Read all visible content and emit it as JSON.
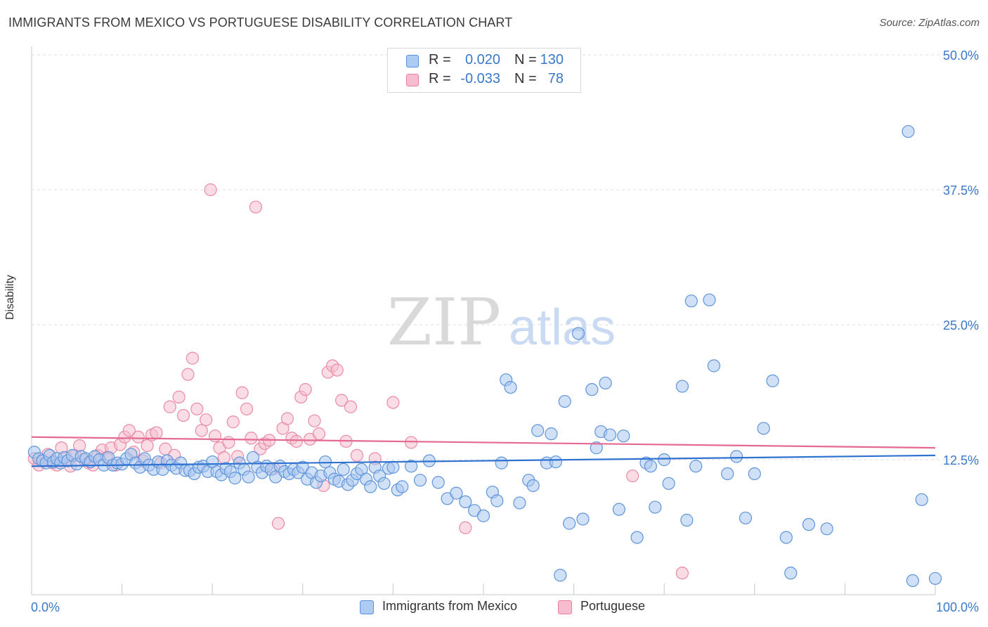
{
  "header": {
    "title": "IMMIGRANTS FROM MEXICO VS PORTUGUESE DISABILITY CORRELATION CHART",
    "source": "Source: ZipAtlas.com"
  },
  "watermark": {
    "zip": "ZIP",
    "atlas": "atlas"
  },
  "legend": {
    "r_label": "R =",
    "n_label": "N =",
    "rows": [
      {
        "series": "Immigrants from Mexico",
        "r": "0.020",
        "n": "130",
        "fill": "#aecbf2",
        "stroke": "#5b8fd9"
      },
      {
        "series": "Portuguese",
        "r": "-0.033",
        "n": "78",
        "fill": "#f7bccd",
        "stroke": "#e77fa0"
      }
    ]
  },
  "colors": {
    "blue_fill": "#a9c7ef",
    "blue_stroke": "#5f95db",
    "blue_line": "#2f72d0",
    "pink_fill": "#f6bfd0",
    "pink_stroke": "#ea8aa9",
    "pink_line": "#e46a93",
    "axis_text": "#3a78c9",
    "grid": "#dcdcdc"
  },
  "chart_data": {
    "type": "scatter",
    "title": "IMMIGRANTS FROM MEXICO VS PORTUGUESE DISABILITY CORRELATION CHART",
    "xlabel": "",
    "ylabel": "Disability",
    "xlim": [
      0,
      100
    ],
    "ylim": [
      0,
      50
    ],
    "x_tick_labels": [
      "0.0%",
      "100.0%"
    ],
    "y_ticks": [
      12.5,
      25.0,
      37.5,
      50.0
    ],
    "y_tick_labels": [
      "12.5%",
      "25.0%",
      "37.5%",
      "50.0%"
    ],
    "grid": "horizontal dashed",
    "legend_position": "top-center",
    "series": [
      {
        "name": "Immigrants from Mexico",
        "r": 0.02,
        "n": 130,
        "trend": {
          "x": [
            0,
            100
          ],
          "y": [
            11.9,
            12.9
          ]
        },
        "points": [
          [
            0.3,
            13.2
          ],
          [
            0.8,
            12.6
          ],
          [
            1.2,
            12.4
          ],
          [
            1.6,
            12.2
          ],
          [
            2.0,
            12.9
          ],
          [
            2.4,
            12.3
          ],
          [
            2.8,
            12.6
          ],
          [
            3.2,
            12.2
          ],
          [
            3.6,
            12.7
          ],
          [
            4.0,
            12.4
          ],
          [
            4.5,
            12.9
          ],
          [
            5.0,
            12.1
          ],
          [
            5.5,
            12.8
          ],
          [
            6.0,
            12.6
          ],
          [
            6.5,
            12.3
          ],
          [
            7.0,
            12.8
          ],
          [
            7.5,
            12.5
          ],
          [
            8.0,
            12.0
          ],
          [
            8.5,
            12.7
          ],
          [
            9.0,
            12.0
          ],
          [
            9.5,
            12.2
          ],
          [
            10.0,
            12.1
          ],
          [
            10.5,
            12.6
          ],
          [
            11.0,
            13.0
          ],
          [
            11.5,
            12.2
          ],
          [
            12.0,
            11.8
          ],
          [
            12.5,
            12.6
          ],
          [
            13.0,
            12.0
          ],
          [
            13.5,
            11.6
          ],
          [
            14.0,
            12.3
          ],
          [
            14.5,
            11.6
          ],
          [
            15.0,
            12.4
          ],
          [
            15.5,
            12.0
          ],
          [
            16.0,
            11.7
          ],
          [
            16.5,
            12.2
          ],
          [
            17.0,
            11.5
          ],
          [
            17.5,
            11.5
          ],
          [
            18.0,
            11.2
          ],
          [
            18.5,
            11.8
          ],
          [
            19.0,
            11.9
          ],
          [
            19.5,
            11.4
          ],
          [
            20.0,
            12.3
          ],
          [
            20.5,
            11.4
          ],
          [
            21.0,
            11.1
          ],
          [
            21.5,
            11.7
          ],
          [
            22.0,
            11.4
          ],
          [
            22.5,
            10.8
          ],
          [
            23.0,
            12.2
          ],
          [
            23.5,
            11.6
          ],
          [
            24.0,
            10.9
          ],
          [
            24.5,
            12.7
          ],
          [
            25.0,
            11.8
          ],
          [
            25.5,
            11.3
          ],
          [
            26.0,
            11.9
          ],
          [
            26.5,
            11.6
          ],
          [
            27.0,
            10.9
          ],
          [
            27.5,
            11.9
          ],
          [
            28.0,
            11.4
          ],
          [
            28.5,
            11.2
          ],
          [
            29.0,
            11.6
          ],
          [
            29.5,
            11.3
          ],
          [
            30.0,
            11.8
          ],
          [
            30.5,
            10.7
          ],
          [
            31.0,
            11.3
          ],
          [
            31.5,
            10.4
          ],
          [
            32.0,
            11.0
          ],
          [
            32.5,
            12.3
          ],
          [
            33.0,
            11.3
          ],
          [
            33.5,
            10.7
          ],
          [
            34.0,
            10.5
          ],
          [
            34.5,
            11.6
          ],
          [
            35.0,
            10.2
          ],
          [
            35.5,
            10.6
          ],
          [
            36.0,
            11.2
          ],
          [
            36.5,
            11.6
          ],
          [
            37.0,
            10.7
          ],
          [
            37.5,
            10.0
          ],
          [
            38.0,
            11.8
          ],
          [
            38.5,
            11.0
          ],
          [
            39.0,
            10.3
          ],
          [
            39.5,
            11.7
          ],
          [
            40.0,
            11.8
          ],
          [
            40.5,
            9.7
          ],
          [
            41.0,
            10.0
          ],
          [
            42.0,
            11.9
          ],
          [
            43.0,
            10.6
          ],
          [
            44.0,
            12.4
          ],
          [
            45.0,
            10.4
          ],
          [
            46.0,
            8.9
          ],
          [
            47.0,
            9.4
          ],
          [
            48.0,
            8.6
          ],
          [
            49.0,
            7.8
          ],
          [
            50.0,
            7.3
          ],
          [
            51.0,
            9.5
          ],
          [
            51.5,
            8.7
          ],
          [
            52.0,
            12.2
          ],
          [
            52.5,
            19.9
          ],
          [
            53.0,
            19.2
          ],
          [
            54.0,
            8.5
          ],
          [
            55.0,
            10.6
          ],
          [
            55.5,
            10.1
          ],
          [
            56.0,
            15.2
          ],
          [
            57.0,
            12.2
          ],
          [
            57.5,
            14.9
          ],
          [
            58.0,
            12.3
          ],
          [
            59.0,
            17.9
          ],
          [
            59.5,
            6.6
          ],
          [
            60.5,
            24.2
          ],
          [
            61.0,
            7.0
          ],
          [
            62.0,
            19.0
          ],
          [
            62.5,
            13.6
          ],
          [
            63.0,
            15.1
          ],
          [
            63.5,
            19.6
          ],
          [
            64.0,
            14.8
          ],
          [
            65.0,
            7.9
          ],
          [
            65.5,
            14.7
          ],
          [
            67.0,
            5.3
          ],
          [
            68.0,
            12.2
          ],
          [
            68.5,
            11.9
          ],
          [
            69.0,
            8.1
          ],
          [
            70.0,
            12.5
          ],
          [
            70.5,
            10.3
          ],
          [
            72.0,
            19.3
          ],
          [
            72.5,
            6.9
          ],
          [
            73.0,
            27.2
          ],
          [
            73.5,
            11.9
          ],
          [
            75.0,
            27.3
          ],
          [
            75.5,
            21.2
          ],
          [
            77.0,
            11.2
          ],
          [
            78.0,
            12.8
          ],
          [
            79.0,
            7.1
          ],
          [
            80.0,
            11.2
          ],
          [
            81.0,
            15.4
          ],
          [
            82.0,
            19.8
          ],
          [
            83.5,
            5.3
          ],
          [
            84.0,
            2.0
          ],
          [
            86.0,
            6.5
          ],
          [
            88.0,
            6.1
          ],
          [
            97.0,
            42.9
          ],
          [
            97.5,
            1.3
          ],
          [
            98.5,
            8.8
          ],
          [
            100.0,
            1.5
          ],
          [
            58.5,
            1.8
          ]
        ]
      },
      {
        "name": "Portuguese",
        "r": -0.033,
        "n": 78,
        "trend": {
          "x": [
            0,
            100
          ],
          "y": [
            14.6,
            13.6
          ]
        },
        "points": [
          [
            0.3,
            12.6
          ],
          [
            0.8,
            12.0
          ],
          [
            1.3,
            12.4
          ],
          [
            1.8,
            13.0
          ],
          [
            2.3,
            12.2
          ],
          [
            2.8,
            12.0
          ],
          [
            3.3,
            13.6
          ],
          [
            3.8,
            12.7
          ],
          [
            4.3,
            11.9
          ],
          [
            4.8,
            12.9
          ],
          [
            5.3,
            13.8
          ],
          [
            5.8,
            12.5
          ],
          [
            6.3,
            12.2
          ],
          [
            6.8,
            12.0
          ],
          [
            7.3,
            12.9
          ],
          [
            7.8,
            13.4
          ],
          [
            8.3,
            12.7
          ],
          [
            8.8,
            13.6
          ],
          [
            9.3,
            12.0
          ],
          [
            9.8,
            13.9
          ],
          [
            10.3,
            14.6
          ],
          [
            10.8,
            15.2
          ],
          [
            11.3,
            13.2
          ],
          [
            11.8,
            14.6
          ],
          [
            12.3,
            12.4
          ],
          [
            12.8,
            13.8
          ],
          [
            13.3,
            14.8
          ],
          [
            13.8,
            15.0
          ],
          [
            14.3,
            12.2
          ],
          [
            14.8,
            13.5
          ],
          [
            15.3,
            17.4
          ],
          [
            15.8,
            12.9
          ],
          [
            16.3,
            18.3
          ],
          [
            16.8,
            16.6
          ],
          [
            17.3,
            20.4
          ],
          [
            17.8,
            21.9
          ],
          [
            18.3,
            17.2
          ],
          [
            18.8,
            15.2
          ],
          [
            19.3,
            16.2
          ],
          [
            19.8,
            37.5
          ],
          [
            20.3,
            14.7
          ],
          [
            20.8,
            13.6
          ],
          [
            21.3,
            12.7
          ],
          [
            21.8,
            14.1
          ],
          [
            22.3,
            16.0
          ],
          [
            22.8,
            12.8
          ],
          [
            23.3,
            18.7
          ],
          [
            23.8,
            17.2
          ],
          [
            24.3,
            14.5
          ],
          [
            24.8,
            35.9
          ],
          [
            25.3,
            13.5
          ],
          [
            25.8,
            14.0
          ],
          [
            26.3,
            14.3
          ],
          [
            26.8,
            11.7
          ],
          [
            27.3,
            6.6
          ],
          [
            27.8,
            15.4
          ],
          [
            28.3,
            16.3
          ],
          [
            28.8,
            14.5
          ],
          [
            29.3,
            14.2
          ],
          [
            29.8,
            18.3
          ],
          [
            30.3,
            19.0
          ],
          [
            30.8,
            14.4
          ],
          [
            31.3,
            16.1
          ],
          [
            31.8,
            14.9
          ],
          [
            32.3,
            10.1
          ],
          [
            32.8,
            20.6
          ],
          [
            33.3,
            21.2
          ],
          [
            33.8,
            20.8
          ],
          [
            34.3,
            18.0
          ],
          [
            34.8,
            14.2
          ],
          [
            35.3,
            17.4
          ],
          [
            36.0,
            12.9
          ],
          [
            38.0,
            12.6
          ],
          [
            40.0,
            17.8
          ],
          [
            42.0,
            14.1
          ],
          [
            48.0,
            6.2
          ],
          [
            66.5,
            11.0
          ],
          [
            72.0,
            2.0
          ]
        ]
      }
    ]
  },
  "axes": {
    "y_tick_labels": [
      "50.0%",
      "37.5%",
      "25.0%",
      "12.5%"
    ],
    "x_left_label": "0.0%",
    "x_right_label": "100.0%",
    "ylabel": "Disability"
  }
}
